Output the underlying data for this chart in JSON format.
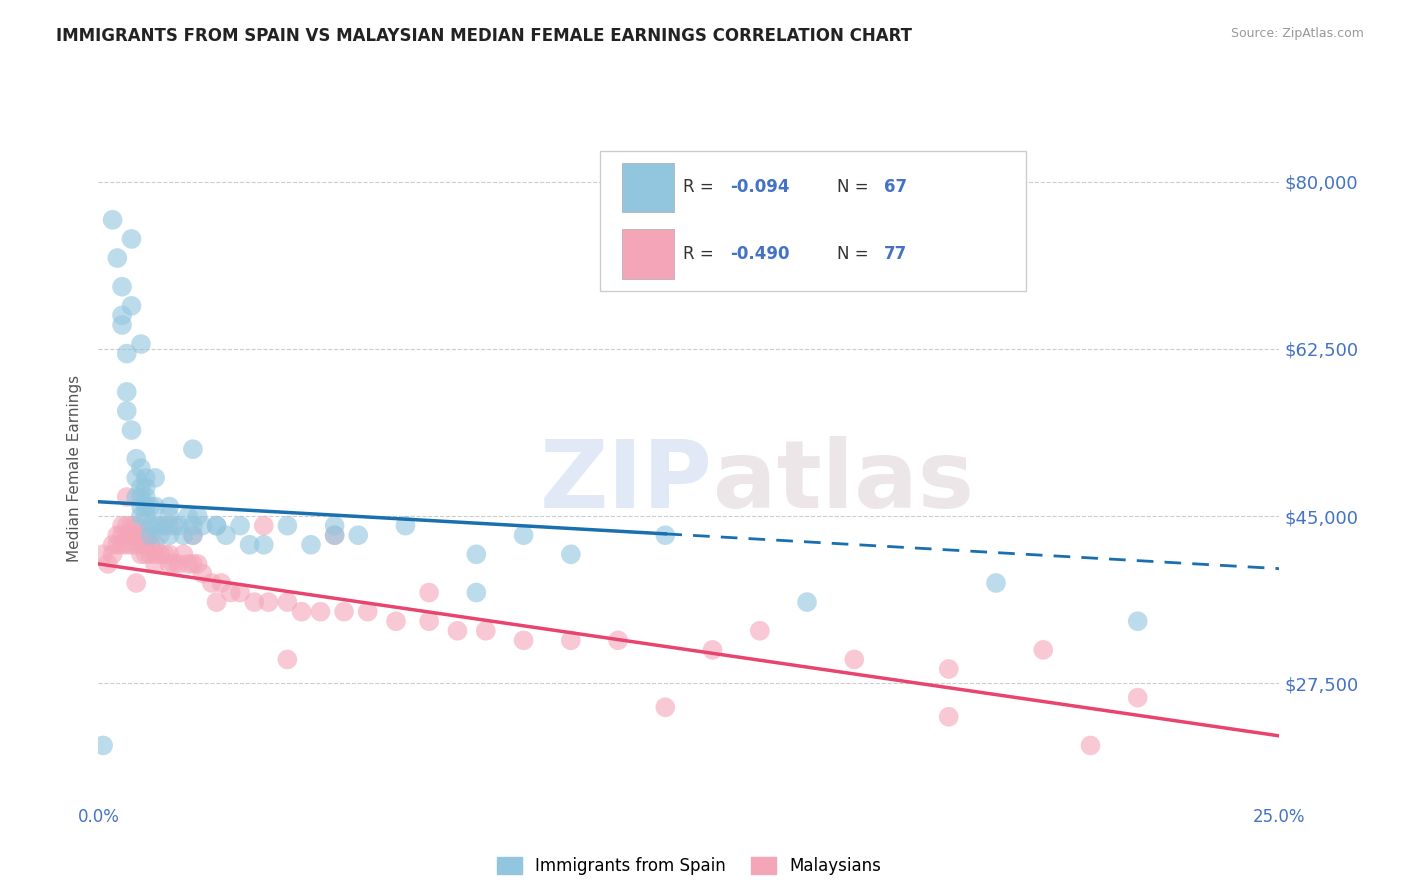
{
  "title": "IMMIGRANTS FROM SPAIN VS MALAYSIAN MEDIAN FEMALE EARNINGS CORRELATION CHART",
  "source": "Source: ZipAtlas.com",
  "ylabel": "Median Female Earnings",
  "xlim": [
    0.0,
    0.25
  ],
  "ylim": [
    15000,
    85000
  ],
  "yticks": [
    27500,
    45000,
    62500,
    80000
  ],
  "ytick_labels": [
    "$27,500",
    "$45,000",
    "$62,500",
    "$80,000"
  ],
  "xtick_labels": [
    "0.0%",
    "25.0%"
  ],
  "color_blue": "#92c5de",
  "color_pink": "#f4a6b8",
  "color_blue_line": "#1a6faf",
  "color_pink_line": "#e8446e",
  "color_axis": "#4472c4",
  "watermark_zip": "ZIP",
  "watermark_atlas": "atlas",
  "blue_line_solid_end": 0.12,
  "blue_line_x0": 0.0,
  "blue_line_x1": 0.25,
  "blue_line_y0": 46500,
  "blue_line_y1": 39500,
  "pink_line_x0": 0.0,
  "pink_line_x1": 0.25,
  "pink_line_y0": 40000,
  "pink_line_y1": 22000,
  "legend_entries": [
    {
      "color": "#92c5de",
      "r": "R = ",
      "r_val": "-0.094",
      "n": "N = ",
      "n_val": "67"
    },
    {
      "color": "#f4a6b8",
      "r": "R = ",
      "r_val": "-0.490",
      "n": "N = ",
      "n_val": "77"
    }
  ],
  "blue_scatter_x": [
    0.001,
    0.003,
    0.004,
    0.005,
    0.005,
    0.006,
    0.006,
    0.007,
    0.007,
    0.008,
    0.008,
    0.008,
    0.009,
    0.009,
    0.009,
    0.009,
    0.009,
    0.01,
    0.01,
    0.01,
    0.01,
    0.011,
    0.011,
    0.011,
    0.012,
    0.012,
    0.013,
    0.013,
    0.014,
    0.015,
    0.015,
    0.016,
    0.017,
    0.018,
    0.019,
    0.02,
    0.02,
    0.021,
    0.022,
    0.025,
    0.027,
    0.03,
    0.032,
    0.04,
    0.045,
    0.05,
    0.055,
    0.065,
    0.08,
    0.09,
    0.1,
    0.12,
    0.15,
    0.19,
    0.22,
    0.005,
    0.006,
    0.007,
    0.009,
    0.01,
    0.012,
    0.015,
    0.02,
    0.025,
    0.035,
    0.05,
    0.08
  ],
  "blue_scatter_y": [
    21000,
    76000,
    72000,
    69000,
    65000,
    62000,
    58000,
    74000,
    67000,
    51000,
    49000,
    47000,
    50000,
    48000,
    47000,
    46000,
    45000,
    49000,
    47000,
    46000,
    45000,
    46000,
    44000,
    43000,
    46000,
    44000,
    44000,
    43000,
    44000,
    45000,
    43000,
    44000,
    44000,
    43000,
    45000,
    43000,
    44000,
    45000,
    44000,
    44000,
    43000,
    44000,
    42000,
    44000,
    42000,
    44000,
    43000,
    44000,
    41000,
    43000,
    41000,
    43000,
    36000,
    38000,
    34000,
    66000,
    56000,
    54000,
    63000,
    48000,
    49000,
    46000,
    52000,
    44000,
    42000,
    43000,
    37000
  ],
  "pink_scatter_x": [
    0.001,
    0.002,
    0.003,
    0.003,
    0.004,
    0.004,
    0.005,
    0.005,
    0.005,
    0.006,
    0.006,
    0.006,
    0.007,
    0.007,
    0.007,
    0.008,
    0.008,
    0.008,
    0.009,
    0.009,
    0.009,
    0.01,
    0.01,
    0.01,
    0.011,
    0.011,
    0.012,
    0.012,
    0.013,
    0.014,
    0.015,
    0.015,
    0.016,
    0.017,
    0.018,
    0.019,
    0.02,
    0.021,
    0.022,
    0.024,
    0.026,
    0.028,
    0.03,
    0.033,
    0.036,
    0.04,
    0.043,
    0.047,
    0.052,
    0.057,
    0.063,
    0.07,
    0.076,
    0.082,
    0.09,
    0.1,
    0.11,
    0.13,
    0.14,
    0.16,
    0.18,
    0.2,
    0.22,
    0.006,
    0.008,
    0.01,
    0.012,
    0.015,
    0.02,
    0.025,
    0.035,
    0.05,
    0.07,
    0.12,
    0.18,
    0.21,
    0.04
  ],
  "pink_scatter_y": [
    41000,
    40000,
    42000,
    41000,
    43000,
    42000,
    44000,
    43000,
    42000,
    44000,
    43000,
    42000,
    44000,
    43000,
    42000,
    44000,
    43000,
    42000,
    43000,
    42000,
    41000,
    43000,
    42000,
    41000,
    42000,
    41000,
    42000,
    41000,
    41000,
    41000,
    41000,
    40000,
    40000,
    40000,
    41000,
    40000,
    40000,
    40000,
    39000,
    38000,
    38000,
    37000,
    37000,
    36000,
    36000,
    36000,
    35000,
    35000,
    35000,
    35000,
    34000,
    34000,
    33000,
    33000,
    32000,
    32000,
    32000,
    31000,
    33000,
    30000,
    29000,
    31000,
    26000,
    47000,
    38000,
    42000,
    40000,
    44000,
    43000,
    36000,
    44000,
    43000,
    37000,
    25000,
    24000,
    21000,
    30000
  ]
}
